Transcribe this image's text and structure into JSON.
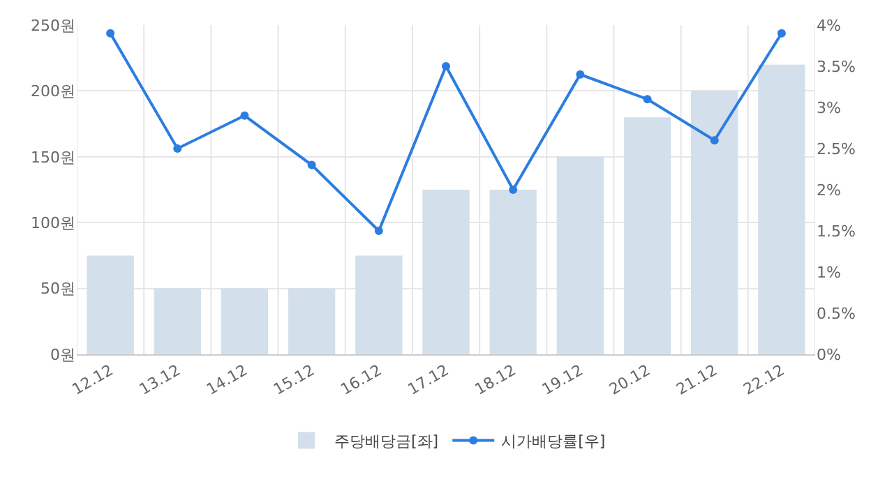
{
  "chart_data": {
    "type": "bar",
    "categories": [
      "12.12",
      "13.12",
      "14.12",
      "15.12",
      "16.12",
      "17.12",
      "18.12",
      "19.12",
      "20.12",
      "21.12",
      "22.12"
    ],
    "series": [
      {
        "name": "주당배당금[좌]",
        "color": "#d3dfeb",
        "values": [
          75,
          50,
          50,
          50,
          75,
          125,
          125,
          150,
          180,
          200,
          220
        ]
      },
      {
        "name": "시가배당률[우]",
        "type": "line",
        "axis": "y2",
        "color": "#2b7de0",
        "marker": "circle",
        "values": [
          3.9,
          2.5,
          2.9,
          2.3,
          1.5,
          3.5,
          2.0,
          3.4,
          3.1,
          2.6,
          3.9
        ]
      }
    ],
    "ylim": [
      0,
      250
    ],
    "yticks": [
      {
        "value": 0,
        "label": "0원"
      },
      {
        "value": 50,
        "label": "50원"
      },
      {
        "value": 100,
        "label": "100원"
      },
      {
        "value": 150,
        "label": "150원"
      },
      {
        "value": 200,
        "label": "200원"
      },
      {
        "value": 250,
        "label": "250원"
      }
    ],
    "y2lim": [
      0,
      4
    ],
    "y2ticks": [
      {
        "value": 0,
        "label": "0%"
      },
      {
        "value": 0.5,
        "label": "0.5%"
      },
      {
        "value": 1,
        "label": "1%"
      },
      {
        "value": 1.5,
        "label": "1.5%"
      },
      {
        "value": 2,
        "label": "2%"
      },
      {
        "value": 2.5,
        "label": "2.5%"
      },
      {
        "value": 3,
        "label": "3%"
      },
      {
        "value": 3.5,
        "label": "3.5%"
      },
      {
        "value": 4,
        "label": "4%"
      }
    ],
    "grid": true,
    "legend": "bottom"
  }
}
